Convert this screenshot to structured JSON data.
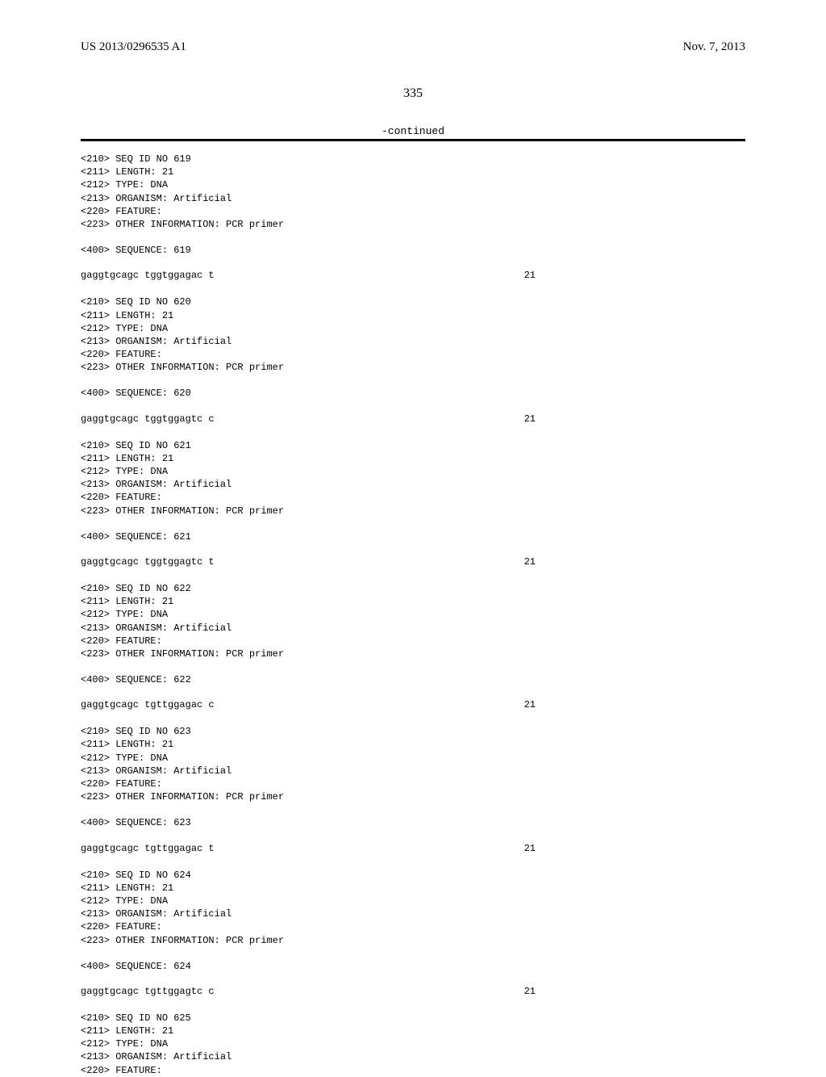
{
  "header": {
    "publication_number": "US 2013/0296535 A1",
    "date": "Nov. 7, 2013"
  },
  "page_number": "335",
  "continued_label": "-continued",
  "entries": [
    {
      "seq_id": "<210> SEQ ID NO 619",
      "length": "<211> LENGTH: 21",
      "type": "<212> TYPE: DNA",
      "organism": "<213> ORGANISM: Artificial",
      "feature": "<220> FEATURE:",
      "other_info": "<223> OTHER INFORMATION: PCR primer",
      "sequence_label": "<400> SEQUENCE: 619",
      "sequence_value": "gaggtgcagc tggtggagac t",
      "sequence_len": "21"
    },
    {
      "seq_id": "<210> SEQ ID NO 620",
      "length": "<211> LENGTH: 21",
      "type": "<212> TYPE: DNA",
      "organism": "<213> ORGANISM: Artificial",
      "feature": "<220> FEATURE:",
      "other_info": "<223> OTHER INFORMATION: PCR primer",
      "sequence_label": "<400> SEQUENCE: 620",
      "sequence_value": "gaggtgcagc tggtggagtc c",
      "sequence_len": "21"
    },
    {
      "seq_id": "<210> SEQ ID NO 621",
      "length": "<211> LENGTH: 21",
      "type": "<212> TYPE: DNA",
      "organism": "<213> ORGANISM: Artificial",
      "feature": "<220> FEATURE:",
      "other_info": "<223> OTHER INFORMATION: PCR primer",
      "sequence_label": "<400> SEQUENCE: 621",
      "sequence_value": "gaggtgcagc tggtggagtc t",
      "sequence_len": "21"
    },
    {
      "seq_id": "<210> SEQ ID NO 622",
      "length": "<211> LENGTH: 21",
      "type": "<212> TYPE: DNA",
      "organism": "<213> ORGANISM: Artificial",
      "feature": "<220> FEATURE:",
      "other_info": "<223> OTHER INFORMATION: PCR primer",
      "sequence_label": "<400> SEQUENCE: 622",
      "sequence_value": "gaggtgcagc tgttggagac c",
      "sequence_len": "21"
    },
    {
      "seq_id": "<210> SEQ ID NO 623",
      "length": "<211> LENGTH: 21",
      "type": "<212> TYPE: DNA",
      "organism": "<213> ORGANISM: Artificial",
      "feature": "<220> FEATURE:",
      "other_info": "<223> OTHER INFORMATION: PCR primer",
      "sequence_label": "<400> SEQUENCE: 623",
      "sequence_value": "gaggtgcagc tgttggagac t",
      "sequence_len": "21"
    },
    {
      "seq_id": "<210> SEQ ID NO 624",
      "length": "<211> LENGTH: 21",
      "type": "<212> TYPE: DNA",
      "organism": "<213> ORGANISM: Artificial",
      "feature": "<220> FEATURE:",
      "other_info": "<223> OTHER INFORMATION: PCR primer",
      "sequence_label": "<400> SEQUENCE: 624",
      "sequence_value": "gaggtgcagc tgttggagtc c",
      "sequence_len": "21"
    },
    {
      "seq_id": "<210> SEQ ID NO 625",
      "length": "<211> LENGTH: 21",
      "type": "<212> TYPE: DNA",
      "organism": "<213> ORGANISM: Artificial",
      "feature": "<220> FEATURE:",
      "partial": true
    }
  ]
}
